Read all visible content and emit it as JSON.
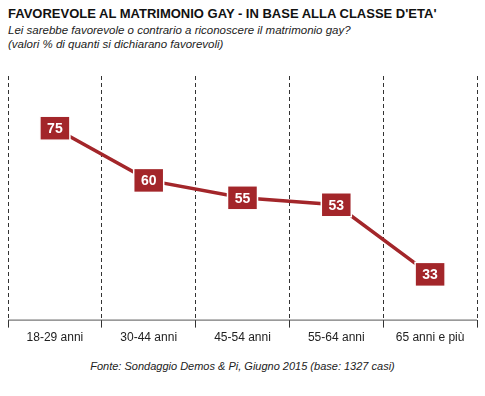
{
  "chart_data": {
    "type": "line",
    "title": "FAVOREVOLE AL MATRIMONIO GAY - IN BASE ALLA CLASSE D'ETA'",
    "subtitle": [
      "Lei sarebbe favorevole o contrario a riconoscere il matrimonio gay?",
      "(valori % di quanti si dichiarano favorevoli)"
    ],
    "annotations": [
      "Fonte: Sondaggio Demos & Pi, Giugno 2015 (base: 1327 casi)"
    ],
    "categories": [
      "18-29 anni",
      "30-44 anni",
      "45-54 anni",
      "55-64 anni",
      "65 anni e più"
    ],
    "values": [
      75,
      60,
      55,
      53,
      33
    ],
    "color": "#a3262a",
    "data_labels": true,
    "tick_labels": "x",
    "grid": true
  }
}
